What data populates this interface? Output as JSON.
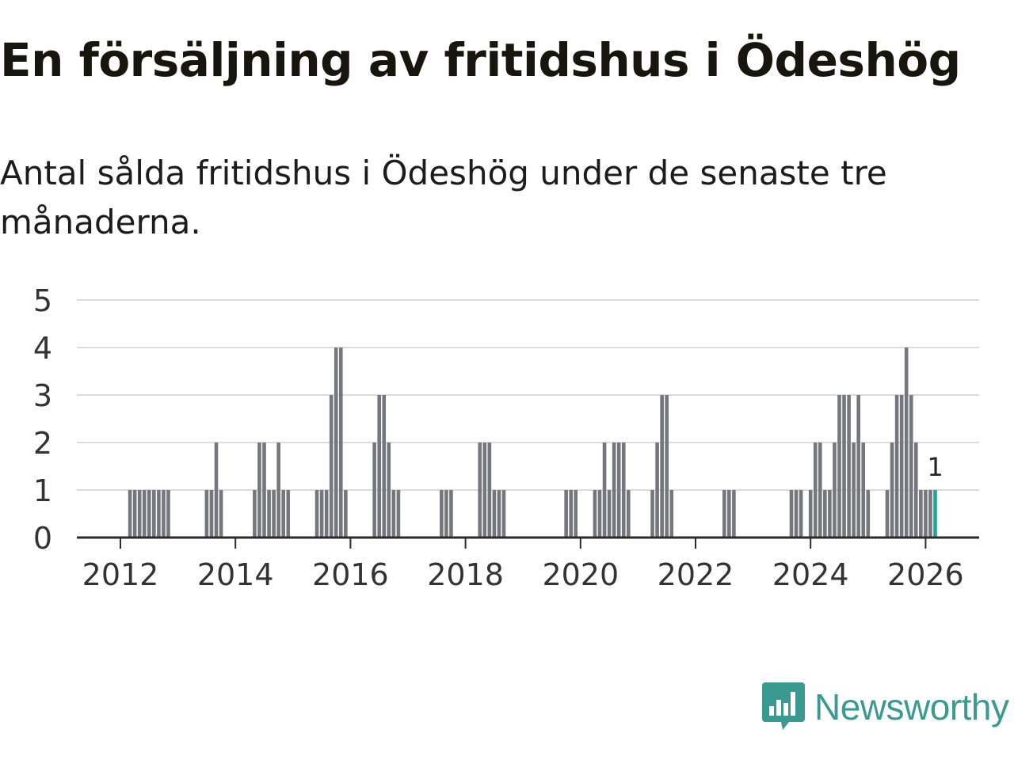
{
  "header": {
    "title": "En försäljning av fritidshus i Ödeshög",
    "subtitle": "Antal sålda fritidshus i Ödeshög under de senaste tre månaderna."
  },
  "brand": {
    "name": "Newsworthy",
    "logo_icon": "newsworthy-logo-icon"
  },
  "colors": {
    "bar": "#76767e",
    "highlight": "#2aa198",
    "grid": "#dcdcdc",
    "axis": "#2a2a2a",
    "brand": "#3a9a92"
  },
  "chart_data": {
    "type": "bar",
    "title": "En försäljning av fritidshus i Ödeshög",
    "subtitle": "Antal sålda fritidshus i Ödeshög under de senaste tre månaderna.",
    "xlabel": "",
    "ylabel": "",
    "ylim": [
      0,
      5
    ],
    "yticks": [
      "0",
      "1",
      "2",
      "3",
      "4",
      "5"
    ],
    "xticks": [
      "2012",
      "2014",
      "2016",
      "2018",
      "2020",
      "2022",
      "2024",
      "2026"
    ],
    "x_range": [
      "2011-01",
      "2026-06"
    ],
    "highlight_label": "1",
    "bars": [
      {
        "month": "2012-03",
        "value": 1
      },
      {
        "month": "2012-04",
        "value": 1
      },
      {
        "month": "2012-05",
        "value": 1
      },
      {
        "month": "2012-06",
        "value": 1
      },
      {
        "month": "2012-07",
        "value": 1
      },
      {
        "month": "2012-08",
        "value": 1
      },
      {
        "month": "2012-09",
        "value": 1
      },
      {
        "month": "2012-10",
        "value": 1
      },
      {
        "month": "2012-11",
        "value": 1
      },
      {
        "month": "2013-07",
        "value": 1
      },
      {
        "month": "2013-08",
        "value": 1
      },
      {
        "month": "2013-09",
        "value": 2
      },
      {
        "month": "2013-10",
        "value": 1
      },
      {
        "month": "2014-05",
        "value": 1
      },
      {
        "month": "2014-06",
        "value": 2
      },
      {
        "month": "2014-07",
        "value": 2
      },
      {
        "month": "2014-08",
        "value": 1
      },
      {
        "month": "2014-09",
        "value": 1
      },
      {
        "month": "2014-10",
        "value": 2
      },
      {
        "month": "2014-11",
        "value": 1
      },
      {
        "month": "2014-12",
        "value": 1
      },
      {
        "month": "2015-06",
        "value": 1
      },
      {
        "month": "2015-07",
        "value": 1
      },
      {
        "month": "2015-08",
        "value": 1
      },
      {
        "month": "2015-09",
        "value": 3
      },
      {
        "month": "2015-10",
        "value": 4
      },
      {
        "month": "2015-11",
        "value": 4
      },
      {
        "month": "2015-12",
        "value": 1
      },
      {
        "month": "2016-06",
        "value": 2
      },
      {
        "month": "2016-07",
        "value": 3
      },
      {
        "month": "2016-08",
        "value": 3
      },
      {
        "month": "2016-09",
        "value": 2
      },
      {
        "month": "2016-10",
        "value": 1
      },
      {
        "month": "2016-11",
        "value": 1
      },
      {
        "month": "2017-08",
        "value": 1
      },
      {
        "month": "2017-09",
        "value": 1
      },
      {
        "month": "2017-10",
        "value": 1
      },
      {
        "month": "2018-04",
        "value": 2
      },
      {
        "month": "2018-05",
        "value": 2
      },
      {
        "month": "2018-06",
        "value": 2
      },
      {
        "month": "2018-07",
        "value": 1
      },
      {
        "month": "2018-08",
        "value": 1
      },
      {
        "month": "2018-09",
        "value": 1
      },
      {
        "month": "2019-10",
        "value": 1
      },
      {
        "month": "2019-11",
        "value": 1
      },
      {
        "month": "2019-12",
        "value": 1
      },
      {
        "month": "2020-04",
        "value": 1
      },
      {
        "month": "2020-05",
        "value": 1
      },
      {
        "month": "2020-06",
        "value": 2
      },
      {
        "month": "2020-07",
        "value": 1
      },
      {
        "month": "2020-08",
        "value": 2
      },
      {
        "month": "2020-09",
        "value": 2
      },
      {
        "month": "2020-10",
        "value": 2
      },
      {
        "month": "2020-11",
        "value": 1
      },
      {
        "month": "2021-04",
        "value": 1
      },
      {
        "month": "2021-05",
        "value": 2
      },
      {
        "month": "2021-06",
        "value": 3
      },
      {
        "month": "2021-07",
        "value": 3
      },
      {
        "month": "2021-08",
        "value": 1
      },
      {
        "month": "2022-07",
        "value": 1
      },
      {
        "month": "2022-08",
        "value": 1
      },
      {
        "month": "2022-09",
        "value": 1
      },
      {
        "month": "2023-09",
        "value": 1
      },
      {
        "month": "2023-10",
        "value": 1
      },
      {
        "month": "2023-11",
        "value": 1
      },
      {
        "month": "2024-01",
        "value": 1
      },
      {
        "month": "2024-02",
        "value": 2
      },
      {
        "month": "2024-03",
        "value": 2
      },
      {
        "month": "2024-04",
        "value": 1
      },
      {
        "month": "2024-05",
        "value": 1
      },
      {
        "month": "2024-06",
        "value": 2
      },
      {
        "month": "2024-07",
        "value": 3
      },
      {
        "month": "2024-08",
        "value": 3
      },
      {
        "month": "2024-09",
        "value": 3
      },
      {
        "month": "2024-10",
        "value": 2
      },
      {
        "month": "2024-11",
        "value": 3
      },
      {
        "month": "2024-12",
        "value": 2
      },
      {
        "month": "2025-01",
        "value": 1
      },
      {
        "month": "2025-05",
        "value": 1
      },
      {
        "month": "2025-06",
        "value": 2
      },
      {
        "month": "2025-07",
        "value": 3
      },
      {
        "month": "2025-08",
        "value": 3
      },
      {
        "month": "2025-09",
        "value": 4
      },
      {
        "month": "2025-10",
        "value": 3
      },
      {
        "month": "2025-11",
        "value": 2
      },
      {
        "month": "2025-12",
        "value": 1
      },
      {
        "month": "2026-01",
        "value": 1
      },
      {
        "month": "2026-02",
        "value": 1
      },
      {
        "month": "2026-03",
        "value": 1,
        "highlight": true
      }
    ]
  }
}
